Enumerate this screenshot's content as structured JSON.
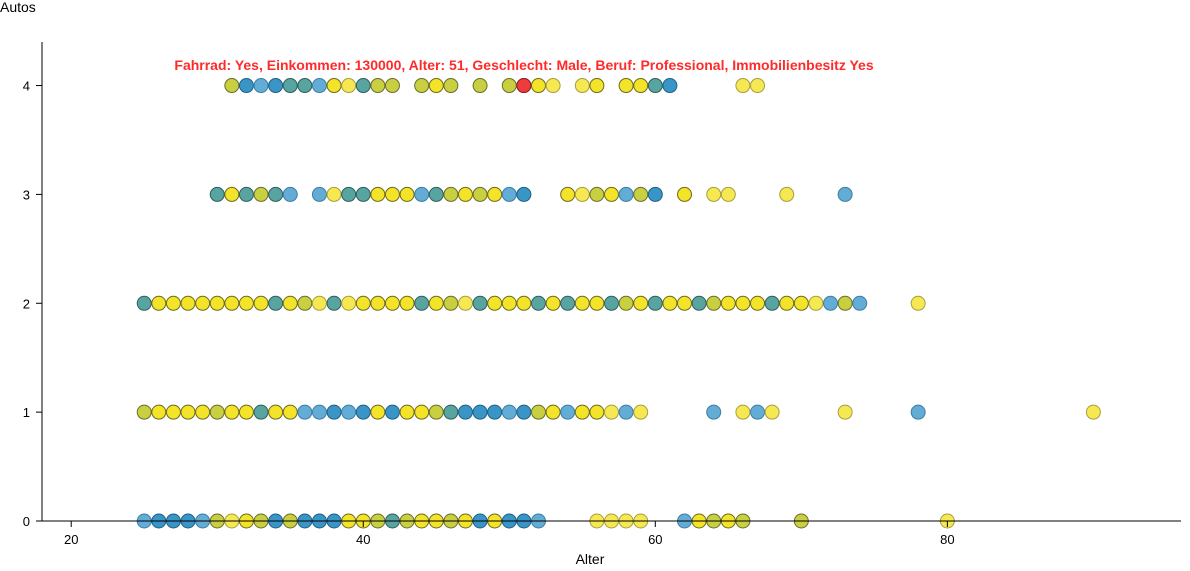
{
  "chart_data": {
    "type": "scatter",
    "title": "",
    "xlabel": "Alter",
    "ylabel": "Autos",
    "xlim": [
      18,
      96
    ],
    "ylim": [
      0,
      4.4
    ],
    "xticks": [
      20,
      40,
      60,
      80
    ],
    "yticks": [
      0,
      1,
      2,
      3,
      4
    ],
    "grid": false,
    "legend": "none",
    "highlight": {
      "label": "Fahrrad: Yes, Einkommen: 130000, Alter: 51, Geschlecht: Male, Beruf: Professional, Immobilienbesitz Yes",
      "x": 51,
      "y": 4,
      "color": "#ef3b3b"
    },
    "palette": {
      "y": "#f2e21d",
      "o": "#c5cc37",
      "t": "#4f9f9b",
      "b": "#2f8fc4",
      "l": "#5aa8d4",
      "p": "#f5e74a"
    },
    "points": [
      [
        31,
        4,
        "o"
      ],
      [
        32,
        4,
        "b"
      ],
      [
        33,
        4,
        "l"
      ],
      [
        34,
        4,
        "b"
      ],
      [
        35,
        4,
        "t"
      ],
      [
        36,
        4,
        "t"
      ],
      [
        37,
        4,
        "l"
      ],
      [
        38,
        4,
        "y"
      ],
      [
        39,
        4,
        "p"
      ],
      [
        40,
        4,
        "t"
      ],
      [
        41,
        4,
        "o"
      ],
      [
        42,
        4,
        "o"
      ],
      [
        44,
        4,
        "o"
      ],
      [
        45,
        4,
        "y"
      ],
      [
        46,
        4,
        "o"
      ],
      [
        48,
        4,
        "o"
      ],
      [
        50,
        4,
        "o"
      ],
      [
        51,
        4,
        "b"
      ],
      [
        52,
        4,
        "y"
      ],
      [
        53,
        4,
        "p"
      ],
      [
        55,
        4,
        "p"
      ],
      [
        56,
        4,
        "y"
      ],
      [
        58,
        4,
        "y"
      ],
      [
        59,
        4,
        "y"
      ],
      [
        60,
        4,
        "t"
      ],
      [
        61,
        4,
        "b"
      ],
      [
        66,
        4,
        "p"
      ],
      [
        67,
        4,
        "p"
      ],
      [
        30,
        3,
        "t"
      ],
      [
        31,
        3,
        "y"
      ],
      [
        32,
        3,
        "t"
      ],
      [
        33,
        3,
        "o"
      ],
      [
        34,
        3,
        "t"
      ],
      [
        35,
        3,
        "l"
      ],
      [
        37,
        3,
        "l"
      ],
      [
        38,
        3,
        "p"
      ],
      [
        39,
        3,
        "t"
      ],
      [
        40,
        3,
        "t"
      ],
      [
        41,
        3,
        "y"
      ],
      [
        42,
        3,
        "y"
      ],
      [
        43,
        3,
        "y"
      ],
      [
        44,
        3,
        "l"
      ],
      [
        45,
        3,
        "t"
      ],
      [
        46,
        3,
        "o"
      ],
      [
        47,
        3,
        "y"
      ],
      [
        48,
        3,
        "o"
      ],
      [
        49,
        3,
        "y"
      ],
      [
        50,
        3,
        "l"
      ],
      [
        51,
        3,
        "b"
      ],
      [
        54,
        3,
        "y"
      ],
      [
        55,
        3,
        "p"
      ],
      [
        56,
        3,
        "o"
      ],
      [
        57,
        3,
        "y"
      ],
      [
        58,
        3,
        "l"
      ],
      [
        59,
        3,
        "o"
      ],
      [
        60,
        3,
        "b"
      ],
      [
        62,
        3,
        "y"
      ],
      [
        64,
        3,
        "p"
      ],
      [
        65,
        3,
        "p"
      ],
      [
        69,
        3,
        "p"
      ],
      [
        73,
        3,
        "l"
      ],
      [
        25,
        2,
        "t"
      ],
      [
        26,
        2,
        "y"
      ],
      [
        27,
        2,
        "y"
      ],
      [
        28,
        2,
        "y"
      ],
      [
        29,
        2,
        "y"
      ],
      [
        30,
        2,
        "y"
      ],
      [
        31,
        2,
        "y"
      ],
      [
        32,
        2,
        "y"
      ],
      [
        33,
        2,
        "y"
      ],
      [
        34,
        2,
        "t"
      ],
      [
        35,
        2,
        "y"
      ],
      [
        36,
        2,
        "o"
      ],
      [
        37,
        2,
        "p"
      ],
      [
        38,
        2,
        "t"
      ],
      [
        39,
        2,
        "p"
      ],
      [
        40,
        2,
        "y"
      ],
      [
        41,
        2,
        "y"
      ],
      [
        42,
        2,
        "y"
      ],
      [
        43,
        2,
        "y"
      ],
      [
        44,
        2,
        "t"
      ],
      [
        45,
        2,
        "y"
      ],
      [
        46,
        2,
        "o"
      ],
      [
        47,
        2,
        "p"
      ],
      [
        48,
        2,
        "t"
      ],
      [
        49,
        2,
        "y"
      ],
      [
        50,
        2,
        "y"
      ],
      [
        51,
        2,
        "y"
      ],
      [
        52,
        2,
        "t"
      ],
      [
        53,
        2,
        "y"
      ],
      [
        54,
        2,
        "t"
      ],
      [
        55,
        2,
        "y"
      ],
      [
        56,
        2,
        "y"
      ],
      [
        57,
        2,
        "t"
      ],
      [
        58,
        2,
        "o"
      ],
      [
        59,
        2,
        "y"
      ],
      [
        60,
        2,
        "t"
      ],
      [
        61,
        2,
        "y"
      ],
      [
        62,
        2,
        "y"
      ],
      [
        63,
        2,
        "t"
      ],
      [
        64,
        2,
        "o"
      ],
      [
        65,
        2,
        "y"
      ],
      [
        66,
        2,
        "y"
      ],
      [
        67,
        2,
        "y"
      ],
      [
        68,
        2,
        "t"
      ],
      [
        69,
        2,
        "y"
      ],
      [
        70,
        2,
        "y"
      ],
      [
        71,
        2,
        "p"
      ],
      [
        72,
        2,
        "l"
      ],
      [
        73,
        2,
        "o"
      ],
      [
        74,
        2,
        "l"
      ],
      [
        78,
        2,
        "p"
      ],
      [
        25,
        1,
        "o"
      ],
      [
        26,
        1,
        "y"
      ],
      [
        27,
        1,
        "y"
      ],
      [
        28,
        1,
        "y"
      ],
      [
        29,
        1,
        "y"
      ],
      [
        30,
        1,
        "o"
      ],
      [
        31,
        1,
        "y"
      ],
      [
        32,
        1,
        "y"
      ],
      [
        33,
        1,
        "t"
      ],
      [
        34,
        1,
        "y"
      ],
      [
        35,
        1,
        "y"
      ],
      [
        36,
        1,
        "l"
      ],
      [
        37,
        1,
        "l"
      ],
      [
        38,
        1,
        "b"
      ],
      [
        39,
        1,
        "l"
      ],
      [
        40,
        1,
        "b"
      ],
      [
        41,
        1,
        "y"
      ],
      [
        42,
        1,
        "b"
      ],
      [
        43,
        1,
        "y"
      ],
      [
        44,
        1,
        "y"
      ],
      [
        45,
        1,
        "o"
      ],
      [
        46,
        1,
        "t"
      ],
      [
        47,
        1,
        "b"
      ],
      [
        48,
        1,
        "b"
      ],
      [
        49,
        1,
        "b"
      ],
      [
        50,
        1,
        "l"
      ],
      [
        51,
        1,
        "b"
      ],
      [
        52,
        1,
        "o"
      ],
      [
        53,
        1,
        "y"
      ],
      [
        54,
        1,
        "l"
      ],
      [
        55,
        1,
        "y"
      ],
      [
        56,
        1,
        "y"
      ],
      [
        57,
        1,
        "p"
      ],
      [
        58,
        1,
        "l"
      ],
      [
        59,
        1,
        "p"
      ],
      [
        64,
        1,
        "l"
      ],
      [
        66,
        1,
        "p"
      ],
      [
        67,
        1,
        "l"
      ],
      [
        68,
        1,
        "p"
      ],
      [
        73,
        1,
        "p"
      ],
      [
        78,
        1,
        "l"
      ],
      [
        90,
        1,
        "p"
      ],
      [
        25,
        0,
        "l"
      ],
      [
        26,
        0,
        "b"
      ],
      [
        27,
        0,
        "b"
      ],
      [
        28,
        0,
        "b"
      ],
      [
        29,
        0,
        "l"
      ],
      [
        30,
        0,
        "o"
      ],
      [
        31,
        0,
        "p"
      ],
      [
        32,
        0,
        "y"
      ],
      [
        33,
        0,
        "o"
      ],
      [
        34,
        0,
        "b"
      ],
      [
        35,
        0,
        "o"
      ],
      [
        36,
        0,
        "b"
      ],
      [
        37,
        0,
        "b"
      ],
      [
        38,
        0,
        "b"
      ],
      [
        39,
        0,
        "y"
      ],
      [
        40,
        0,
        "y"
      ],
      [
        41,
        0,
        "o"
      ],
      [
        42,
        0,
        "t"
      ],
      [
        43,
        0,
        "o"
      ],
      [
        44,
        0,
        "y"
      ],
      [
        45,
        0,
        "y"
      ],
      [
        46,
        0,
        "o"
      ],
      [
        47,
        0,
        "y"
      ],
      [
        48,
        0,
        "b"
      ],
      [
        49,
        0,
        "y"
      ],
      [
        50,
        0,
        "b"
      ],
      [
        51,
        0,
        "b"
      ],
      [
        52,
        0,
        "l"
      ],
      [
        56,
        0,
        "p"
      ],
      [
        57,
        0,
        "p"
      ],
      [
        58,
        0,
        "p"
      ],
      [
        59,
        0,
        "p"
      ],
      [
        62,
        0,
        "l"
      ],
      [
        63,
        0,
        "y"
      ],
      [
        64,
        0,
        "o"
      ],
      [
        65,
        0,
        "y"
      ],
      [
        66,
        0,
        "o"
      ],
      [
        70,
        0,
        "o"
      ],
      [
        80,
        0,
        "p"
      ]
    ]
  }
}
